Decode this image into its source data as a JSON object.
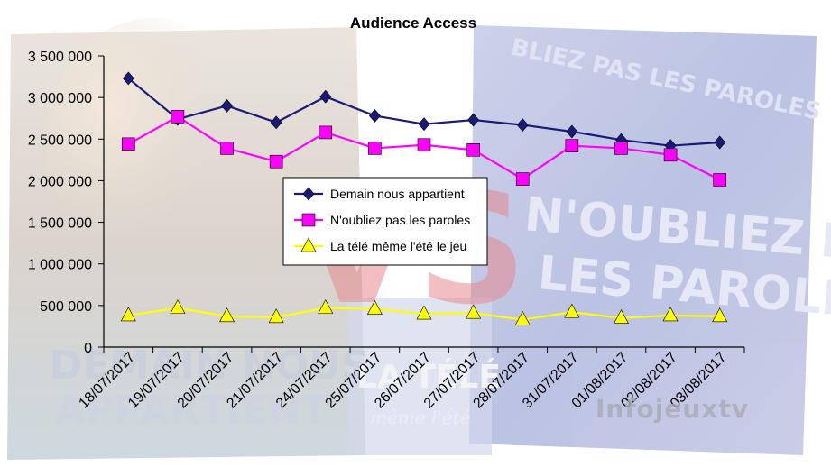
{
  "chart_data": {
    "type": "line",
    "title": "Audience Access",
    "xlabel": "",
    "ylabel": "",
    "categories": [
      "18/07/2017",
      "19/07/2017",
      "20/07/2017",
      "21/07/2017",
      "24/07/2017",
      "25/07/2017",
      "26/07/2017",
      "27/07/2017",
      "28/07/2017",
      "31/07/2017",
      "01/08/2017",
      "02/08/2017",
      "03/08/2017"
    ],
    "ylim": [
      0,
      3500000
    ],
    "yticks": [
      0,
      500000,
      1000000,
      1500000,
      2000000,
      2500000,
      3000000,
      3500000
    ],
    "ytick_labels": [
      "0",
      "500 000",
      "1 000 000",
      "1 500 000",
      "2 000 000",
      "2 500 000",
      "3 000 000",
      "3 500 000"
    ],
    "grid": false,
    "legend_position": "center",
    "series": [
      {
        "name": "Demain nous appartient",
        "color": "#1a1a7a",
        "marker": "diamond",
        "values": [
          3230000,
          2740000,
          2900000,
          2700000,
          3010000,
          2780000,
          2680000,
          2730000,
          2670000,
          2590000,
          2490000,
          2420000,
          2460000
        ]
      },
      {
        "name": "N'oubliez pas les paroles",
        "color": "#ff00ff",
        "marker": "square",
        "values": [
          2440000,
          2770000,
          2390000,
          2230000,
          2580000,
          2390000,
          2430000,
          2370000,
          2020000,
          2420000,
          2390000,
          2310000,
          2010000
        ]
      },
      {
        "name": "La télé même l'été le jeu",
        "color": "#ffff00",
        "marker": "triangle",
        "values": [
          380000,
          470000,
          370000,
          360000,
          470000,
          460000,
          400000,
          410000,
          330000,
          420000,
          350000,
          380000,
          370000
        ]
      }
    ]
  },
  "watermark": {
    "site": "Infojeuxtv",
    "vs": "VS",
    "left_show": [
      "DEMAIN NOUS",
      "APPARTIENT"
    ],
    "right_show": [
      "N'OUBLIEZ PAS",
      "LES PAROLES"
    ],
    "right_sign": "BLIEZ PAS LES PAROLES",
    "center_show": [
      "LA TÉLÉ",
      "même l'été"
    ]
  }
}
